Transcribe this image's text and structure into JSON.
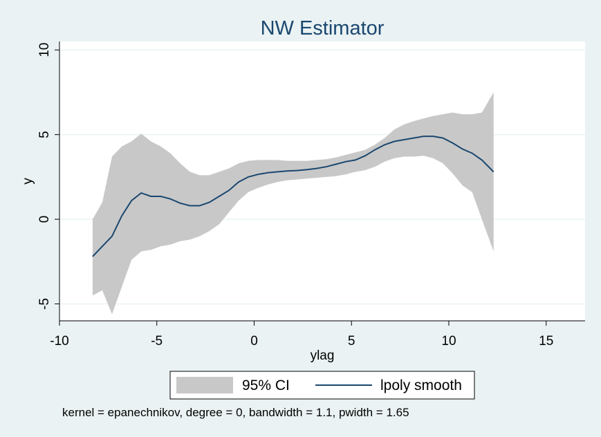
{
  "chart_data": {
    "type": "line",
    "title": "NW Estimator",
    "xlabel": "ylag",
    "ylabel": "y",
    "xlim": [
      -10,
      17
    ],
    "ylim": [
      -6,
      10.5
    ],
    "xticks": [
      -10,
      -5,
      0,
      5,
      10,
      15
    ],
    "xtick_labels": [
      "-10",
      "-5",
      "0",
      "5",
      "10",
      "15"
    ],
    "yticks": [
      -5,
      0,
      5,
      10
    ],
    "ytick_labels": [
      "-5",
      "0",
      "5",
      "10"
    ],
    "grid": true,
    "legend_position": "bottom",
    "note": "kernel = epanechnikov, degree = 0, bandwidth = 1.1, pwidth = 1.65",
    "colors": {
      "background": "#eaf2f3",
      "plot_area": "#ffffff",
      "ci_fill": "#c8c8c8",
      "line": "#1a476f",
      "title": "#1a476f",
      "grid": "#eaf2f3"
    },
    "series": [
      {
        "name": "95% CI",
        "type": "area",
        "x": [
          -8.3,
          -7.8,
          -7.3,
          -6.8,
          -6.3,
          -5.8,
          -5.3,
          -4.8,
          -4.3,
          -3.8,
          -3.3,
          -2.8,
          -2.3,
          -1.8,
          -1.3,
          -0.8,
          -0.3,
          0.2,
          0.7,
          1.2,
          1.7,
          2.2,
          2.7,
          3.2,
          3.7,
          4.2,
          4.7,
          5.2,
          5.7,
          6.2,
          6.7,
          7.2,
          7.7,
          8.2,
          8.7,
          9.2,
          9.7,
          10.2,
          10.7,
          11.2,
          11.7,
          12.3
        ],
        "lower": [
          -4.5,
          -4.2,
          -5.6,
          -4.0,
          -2.4,
          -1.9,
          -1.8,
          -1.6,
          -1.5,
          -1.3,
          -1.2,
          -1.0,
          -0.7,
          -0.3,
          0.4,
          1.1,
          1.6,
          1.85,
          2.05,
          2.2,
          2.3,
          2.35,
          2.4,
          2.45,
          2.5,
          2.55,
          2.65,
          2.8,
          2.9,
          3.1,
          3.4,
          3.6,
          3.7,
          3.7,
          3.75,
          3.6,
          3.3,
          2.7,
          2.0,
          1.6,
          0.0,
          -1.9
        ],
        "upper": [
          0.0,
          1.0,
          3.7,
          4.3,
          4.6,
          5.05,
          4.6,
          4.3,
          3.9,
          3.3,
          2.8,
          2.6,
          2.6,
          2.8,
          3.0,
          3.3,
          3.45,
          3.5,
          3.5,
          3.5,
          3.45,
          3.45,
          3.45,
          3.5,
          3.55,
          3.65,
          3.8,
          3.95,
          4.1,
          4.4,
          4.8,
          5.3,
          5.6,
          5.8,
          5.95,
          6.1,
          6.2,
          6.3,
          6.2,
          6.2,
          6.3,
          7.5
        ]
      },
      {
        "name": "lpoly smooth",
        "type": "line",
        "x": [
          -8.3,
          -7.8,
          -7.3,
          -6.8,
          -6.3,
          -5.8,
          -5.3,
          -4.8,
          -4.3,
          -3.8,
          -3.3,
          -2.8,
          -2.3,
          -1.8,
          -1.3,
          -0.8,
          -0.3,
          0.2,
          0.7,
          1.2,
          1.7,
          2.2,
          2.7,
          3.2,
          3.7,
          4.2,
          4.7,
          5.2,
          5.7,
          6.2,
          6.7,
          7.2,
          7.7,
          8.2,
          8.7,
          9.2,
          9.7,
          10.2,
          10.7,
          11.2,
          11.7,
          12.3
        ],
        "values": [
          -2.2,
          -1.6,
          -1.0,
          0.2,
          1.1,
          1.55,
          1.35,
          1.35,
          1.2,
          0.95,
          0.8,
          0.8,
          1.0,
          1.35,
          1.7,
          2.2,
          2.5,
          2.65,
          2.75,
          2.8,
          2.85,
          2.88,
          2.93,
          3.0,
          3.1,
          3.25,
          3.4,
          3.5,
          3.75,
          4.1,
          4.4,
          4.6,
          4.7,
          4.8,
          4.9,
          4.9,
          4.8,
          4.5,
          4.15,
          3.9,
          3.5,
          2.8
        ]
      }
    ]
  }
}
